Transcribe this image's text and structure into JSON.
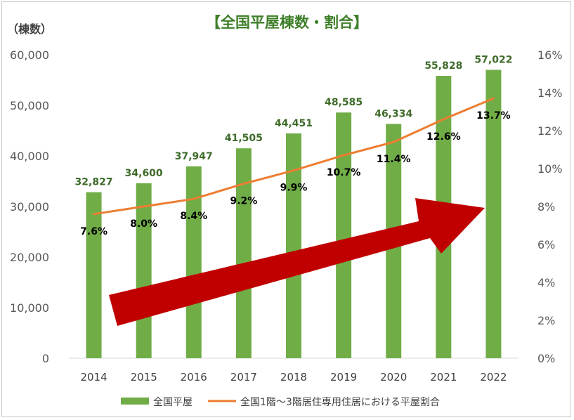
{
  "title": "【全国平屋棟数・割合】",
  "y_unit": "（棟数）",
  "colors": {
    "bar": "#70ad47",
    "line": "#ed7d31",
    "arrow": "#c00000",
    "title": "#3f7f2a"
  },
  "chart_data": {
    "type": "bar",
    "title": "【全国平屋棟数・割合】",
    "categories": [
      "2014",
      "2015",
      "2016",
      "2017",
      "2018",
      "2019",
      "2020",
      "2021",
      "2022"
    ],
    "series": [
      {
        "name": "全国平屋",
        "type": "bar",
        "axis": "left",
        "values": [
          32827,
          34600,
          37947,
          41505,
          44451,
          48585,
          46334,
          55828,
          57022
        ],
        "labels": [
          "32,827",
          "34,600",
          "37,947",
          "41,505",
          "44,451",
          "48,585",
          "46,334",
          "55,828",
          "57,022"
        ]
      },
      {
        "name": "全国1階～3階居住専用住居における平屋割合",
        "type": "line",
        "axis": "right",
        "values": [
          7.6,
          8.0,
          8.4,
          9.2,
          9.9,
          10.7,
          11.4,
          12.6,
          13.7
        ],
        "labels": [
          "7.6%",
          "8.0%",
          "8.4%",
          "9.2%",
          "9.9%",
          "10.7%",
          "11.4%",
          "12.6%",
          "13.7%"
        ]
      }
    ],
    "y_left": {
      "ylim": [
        0,
        60000
      ],
      "ticks": [
        "0",
        "10,000",
        "20,000",
        "30,000",
        "40,000",
        "50,000",
        "60,000"
      ]
    },
    "y_right": {
      "ylim": [
        0,
        16
      ],
      "ticks": [
        "0%",
        "2%",
        "4%",
        "6%",
        "8%",
        "10%",
        "12%",
        "14%",
        "16%"
      ]
    },
    "grid": false,
    "legend": "bottom"
  }
}
